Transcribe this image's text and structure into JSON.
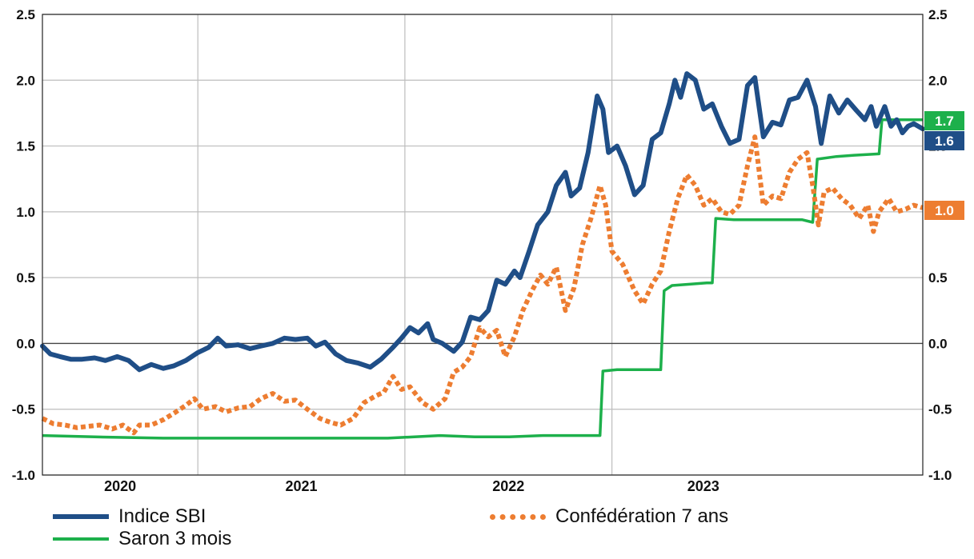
{
  "chart_data": {
    "type": "line",
    "title": "",
    "xlabel": "",
    "ylabel": "",
    "ylim": [
      -1.0,
      2.5
    ],
    "y_ticks": [
      "2.5",
      "2.0",
      "1.5",
      "1.0",
      "0.5",
      "0.0",
      "-0.5",
      "-1.0"
    ],
    "x_tick_labels": [
      "2020",
      "2021",
      "2022",
      "2023"
    ],
    "x_range": [
      "2019-10-01",
      "2023-12-31"
    ],
    "x_gridlines": [
      "2020-07-01",
      "2021-07-01",
      "2022-07-01"
    ],
    "grid": true,
    "legend_placement": "bottom",
    "series": [
      {
        "name": "Indice SBI",
        "color": "#1f4e87",
        "style": "solid-thick",
        "points": [
          [
            "2019-10-01",
            -0.02
          ],
          [
            "2019-10-15",
            -0.08
          ],
          [
            "2019-11-01",
            -0.1
          ],
          [
            "2019-11-20",
            -0.12
          ],
          [
            "2019-12-10",
            -0.12
          ],
          [
            "2020-01-01",
            -0.11
          ],
          [
            "2020-01-20",
            -0.13
          ],
          [
            "2020-02-10",
            -0.1
          ],
          [
            "2020-03-01",
            -0.13
          ],
          [
            "2020-03-20",
            -0.2
          ],
          [
            "2020-04-10",
            -0.16
          ],
          [
            "2020-05-01",
            -0.19
          ],
          [
            "2020-05-20",
            -0.17
          ],
          [
            "2020-06-10",
            -0.13
          ],
          [
            "2020-07-01",
            -0.07
          ],
          [
            "2020-07-20",
            -0.03
          ],
          [
            "2020-08-05",
            0.04
          ],
          [
            "2020-08-20",
            -0.02
          ],
          [
            "2020-09-10",
            -0.01
          ],
          [
            "2020-10-01",
            -0.04
          ],
          [
            "2020-10-20",
            -0.02
          ],
          [
            "2020-11-10",
            0.0
          ],
          [
            "2020-12-01",
            0.04
          ],
          [
            "2020-12-20",
            0.03
          ],
          [
            "2021-01-10",
            0.04
          ],
          [
            "2021-01-25",
            -0.02
          ],
          [
            "2021-02-10",
            0.01
          ],
          [
            "2021-03-01",
            -0.08
          ],
          [
            "2021-03-20",
            -0.13
          ],
          [
            "2021-04-10",
            -0.15
          ],
          [
            "2021-05-01",
            -0.18
          ],
          [
            "2021-05-20",
            -0.12
          ],
          [
            "2021-06-10",
            -0.03
          ],
          [
            "2021-06-25",
            0.04
          ],
          [
            "2021-07-10",
            0.12
          ],
          [
            "2021-07-25",
            0.08
          ],
          [
            "2021-08-10",
            0.15
          ],
          [
            "2021-08-20",
            0.03
          ],
          [
            "2021-09-05",
            0.0
          ],
          [
            "2021-09-25",
            -0.06
          ],
          [
            "2021-10-10",
            0.01
          ],
          [
            "2021-10-25",
            0.2
          ],
          [
            "2021-11-10",
            0.18
          ],
          [
            "2021-11-25",
            0.25
          ],
          [
            "2021-12-10",
            0.48
          ],
          [
            "2021-12-25",
            0.45
          ],
          [
            "2022-01-10",
            0.55
          ],
          [
            "2022-01-20",
            0.5
          ],
          [
            "2022-02-05",
            0.7
          ],
          [
            "2022-02-20",
            0.9
          ],
          [
            "2022-03-10",
            1.0
          ],
          [
            "2022-03-25",
            1.2
          ],
          [
            "2022-04-10",
            1.3
          ],
          [
            "2022-04-20",
            1.12
          ],
          [
            "2022-05-05",
            1.18
          ],
          [
            "2022-05-20",
            1.45
          ],
          [
            "2022-06-05",
            1.88
          ],
          [
            "2022-06-15",
            1.78
          ],
          [
            "2022-06-25",
            1.45
          ],
          [
            "2022-07-10",
            1.5
          ],
          [
            "2022-07-25",
            1.35
          ],
          [
            "2022-08-10",
            1.13
          ],
          [
            "2022-08-25",
            1.2
          ],
          [
            "2022-09-10",
            1.55
          ],
          [
            "2022-09-25",
            1.6
          ],
          [
            "2022-10-10",
            1.82
          ],
          [
            "2022-10-20",
            2.0
          ],
          [
            "2022-10-30",
            1.87
          ],
          [
            "2022-11-10",
            2.05
          ],
          [
            "2022-11-25",
            2.0
          ],
          [
            "2022-12-10",
            1.78
          ],
          [
            "2022-12-25",
            1.82
          ],
          [
            "2023-01-10",
            1.65
          ],
          [
            "2023-01-25",
            1.52
          ],
          [
            "2023-02-10",
            1.55
          ],
          [
            "2023-02-25",
            1.96
          ],
          [
            "2023-03-10",
            2.02
          ],
          [
            "2023-03-25",
            1.57
          ],
          [
            "2023-04-10",
            1.68
          ],
          [
            "2023-04-25",
            1.66
          ],
          [
            "2023-05-10",
            1.85
          ],
          [
            "2023-05-25",
            1.87
          ],
          [
            "2023-06-10",
            2.0
          ],
          [
            "2023-06-25",
            1.8
          ],
          [
            "2023-07-05",
            1.52
          ],
          [
            "2023-07-20",
            1.88
          ],
          [
            "2023-08-05",
            1.75
          ],
          [
            "2023-08-20",
            1.85
          ],
          [
            "2023-09-05",
            1.77
          ],
          [
            "2023-09-20",
            1.7
          ],
          [
            "2023-10-01",
            1.8
          ],
          [
            "2023-10-10",
            1.65
          ],
          [
            "2023-10-25",
            1.8
          ],
          [
            "2023-11-05",
            1.65
          ],
          [
            "2023-11-15",
            1.7
          ],
          [
            "2023-11-25",
            1.6
          ],
          [
            "2023-12-05",
            1.65
          ],
          [
            "2023-12-15",
            1.67
          ],
          [
            "2023-12-31",
            1.63
          ]
        ]
      },
      {
        "name": "Confédération 7 ans",
        "color": "#ed7d31",
        "style": "dotted-thick",
        "points": [
          [
            "2019-10-01",
            -0.57
          ],
          [
            "2019-10-20",
            -0.61
          ],
          [
            "2019-11-10",
            -0.62
          ],
          [
            "2019-12-01",
            -0.64
          ],
          [
            "2019-12-20",
            -0.63
          ],
          [
            "2020-01-10",
            -0.62
          ],
          [
            "2020-02-01",
            -0.65
          ],
          [
            "2020-02-20",
            -0.62
          ],
          [
            "2020-03-10",
            -0.68
          ],
          [
            "2020-03-20",
            -0.62
          ],
          [
            "2020-04-10",
            -0.62
          ],
          [
            "2020-05-01",
            -0.58
          ],
          [
            "2020-05-20",
            -0.53
          ],
          [
            "2020-06-10",
            -0.47
          ],
          [
            "2020-06-25",
            -0.42
          ],
          [
            "2020-07-10",
            -0.5
          ],
          [
            "2020-08-01",
            -0.48
          ],
          [
            "2020-08-20",
            -0.52
          ],
          [
            "2020-09-10",
            -0.49
          ],
          [
            "2020-10-01",
            -0.48
          ],
          [
            "2020-10-20",
            -0.42
          ],
          [
            "2020-11-10",
            -0.38
          ],
          [
            "2020-12-01",
            -0.44
          ],
          [
            "2020-12-20",
            -0.43
          ],
          [
            "2021-01-10",
            -0.5
          ],
          [
            "2021-02-01",
            -0.57
          ],
          [
            "2021-02-20",
            -0.6
          ],
          [
            "2021-03-10",
            -0.62
          ],
          [
            "2021-04-01",
            -0.57
          ],
          [
            "2021-04-20",
            -0.45
          ],
          [
            "2021-05-10",
            -0.4
          ],
          [
            "2021-05-25",
            -0.37
          ],
          [
            "2021-06-10",
            -0.25
          ],
          [
            "2021-06-25",
            -0.35
          ],
          [
            "2021-07-10",
            -0.33
          ],
          [
            "2021-08-01",
            -0.45
          ],
          [
            "2021-08-20",
            -0.5
          ],
          [
            "2021-09-10",
            -0.42
          ],
          [
            "2021-09-25",
            -0.22
          ],
          [
            "2021-10-10",
            -0.18
          ],
          [
            "2021-10-25",
            -0.1
          ],
          [
            "2021-11-10",
            0.12
          ],
          [
            "2021-11-25",
            0.05
          ],
          [
            "2021-12-10",
            0.1
          ],
          [
            "2021-12-25",
            -0.1
          ],
          [
            "2022-01-10",
            0.05
          ],
          [
            "2022-01-25",
            0.25
          ],
          [
            "2022-02-10",
            0.4
          ],
          [
            "2022-02-25",
            0.52
          ],
          [
            "2022-03-10",
            0.45
          ],
          [
            "2022-03-25",
            0.58
          ],
          [
            "2022-04-10",
            0.25
          ],
          [
            "2022-04-25",
            0.42
          ],
          [
            "2022-05-10",
            0.75
          ],
          [
            "2022-05-25",
            0.95
          ],
          [
            "2022-06-10",
            1.2
          ],
          [
            "2022-06-20",
            1.05
          ],
          [
            "2022-07-01",
            0.7
          ],
          [
            "2022-07-20",
            0.6
          ],
          [
            "2022-08-10",
            0.4
          ],
          [
            "2022-08-25",
            0.3
          ],
          [
            "2022-09-10",
            0.45
          ],
          [
            "2022-09-25",
            0.55
          ],
          [
            "2022-10-10",
            0.85
          ],
          [
            "2022-10-25",
            1.1
          ],
          [
            "2022-11-10",
            1.28
          ],
          [
            "2022-11-25",
            1.2
          ],
          [
            "2022-12-10",
            1.05
          ],
          [
            "2022-12-25",
            1.1
          ],
          [
            "2023-01-10",
            1.0
          ],
          [
            "2023-01-25",
            0.98
          ],
          [
            "2023-02-10",
            1.05
          ],
          [
            "2023-02-25",
            1.35
          ],
          [
            "2023-03-10",
            1.57
          ],
          [
            "2023-03-25",
            1.05
          ],
          [
            "2023-04-10",
            1.12
          ],
          [
            "2023-04-25",
            1.1
          ],
          [
            "2023-05-10",
            1.3
          ],
          [
            "2023-05-25",
            1.4
          ],
          [
            "2023-06-10",
            1.45
          ],
          [
            "2023-06-20",
            1.2
          ],
          [
            "2023-06-30",
            0.9
          ],
          [
            "2023-07-10",
            1.15
          ],
          [
            "2023-07-25",
            1.18
          ],
          [
            "2023-08-10",
            1.1
          ],
          [
            "2023-08-25",
            1.05
          ],
          [
            "2023-09-10",
            0.95
          ],
          [
            "2023-09-25",
            1.05
          ],
          [
            "2023-10-05",
            0.85
          ],
          [
            "2023-10-15",
            1.0
          ],
          [
            "2023-11-01",
            1.1
          ],
          [
            "2023-11-15",
            1.0
          ],
          [
            "2023-12-01",
            1.02
          ],
          [
            "2023-12-15",
            1.05
          ],
          [
            "2023-12-31",
            1.03
          ]
        ]
      },
      {
        "name": "Saron 3 mois",
        "color": "#1db04b",
        "style": "solid",
        "points": [
          [
            "2019-10-01",
            -0.7
          ],
          [
            "2020-01-01",
            -0.71
          ],
          [
            "2020-05-01",
            -0.72
          ],
          [
            "2020-12-01",
            -0.72
          ],
          [
            "2021-03-01",
            -0.72
          ],
          [
            "2021-06-01",
            -0.72
          ],
          [
            "2021-09-01",
            -0.7
          ],
          [
            "2021-11-01",
            -0.71
          ],
          [
            "2022-01-01",
            -0.71
          ],
          [
            "2022-03-01",
            -0.7
          ],
          [
            "2022-05-01",
            -0.7
          ],
          [
            "2022-06-10",
            -0.7
          ],
          [
            "2022-06-15",
            -0.21
          ],
          [
            "2022-07-10",
            -0.2
          ],
          [
            "2022-08-10",
            -0.2
          ],
          [
            "2022-09-10",
            -0.2
          ],
          [
            "2022-09-25",
            -0.2
          ],
          [
            "2022-10-01",
            0.4
          ],
          [
            "2022-10-15",
            0.44
          ],
          [
            "2022-11-15",
            0.45
          ],
          [
            "2022-12-15",
            0.46
          ],
          [
            "2022-12-25",
            0.46
          ],
          [
            "2022-12-31",
            0.95
          ],
          [
            "2023-02-01",
            0.94
          ],
          [
            "2023-03-01",
            0.94
          ],
          [
            "2023-04-01",
            0.94
          ],
          [
            "2023-06-01",
            0.94
          ],
          [
            "2023-06-20",
            0.92
          ],
          [
            "2023-06-28",
            1.4
          ],
          [
            "2023-08-01",
            1.42
          ],
          [
            "2023-09-01",
            1.43
          ],
          [
            "2023-10-15",
            1.44
          ],
          [
            "2023-10-20",
            1.7
          ],
          [
            "2023-12-31",
            1.7
          ]
        ]
      }
    ],
    "end_badges": [
      {
        "label": "1.7",
        "color": "#1db04b"
      },
      {
        "label": "1.6",
        "color": "#1f4e87"
      },
      {
        "label": "1.0",
        "color": "#ed7d31"
      }
    ]
  }
}
